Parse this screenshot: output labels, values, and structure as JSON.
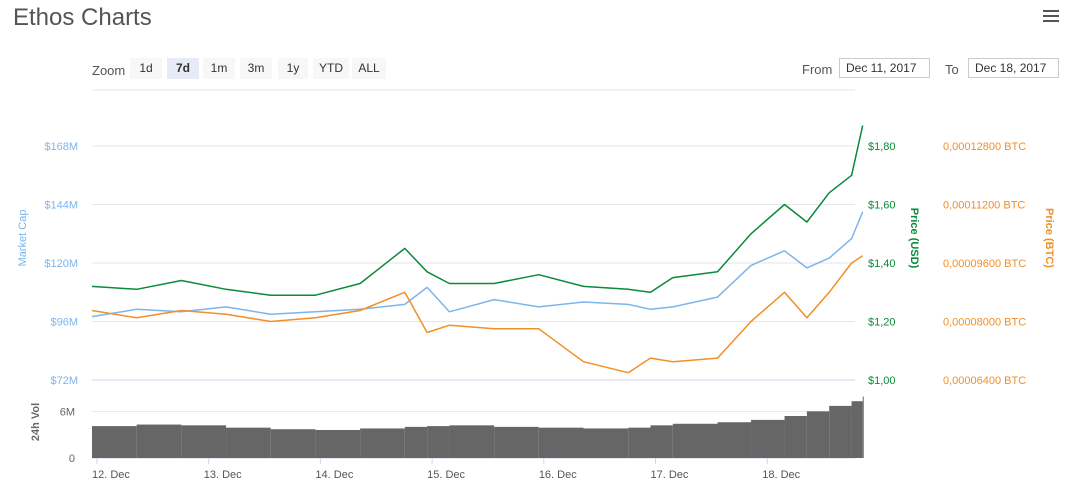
{
  "title": "Ethos Charts",
  "menu_icon": "hamburger-menu-icon",
  "zoom": {
    "label": "Zoom",
    "buttons": [
      "1d",
      "7d",
      "1m",
      "3m",
      "1y",
      "YTD",
      "ALL"
    ],
    "active": "7d"
  },
  "range": {
    "from_label": "From",
    "from_value": "Dec 11, 2017",
    "to_label": "To",
    "to_value": "Dec 18, 2017"
  },
  "colors": {
    "market_cap": "#7cb5ec",
    "price_usd": "#0a8a3a",
    "price_btc": "#f28f25",
    "volume": "#666666",
    "grid": "#e6e6e6"
  },
  "chart_data": {
    "type": "line",
    "x_axis": {
      "tick_labels": [
        "12. Dec",
        "13. Dec",
        "14. Dec",
        "15. Dec",
        "16. Dec",
        "17. Dec",
        "18. Dec"
      ]
    },
    "y_axes": {
      "market_cap": {
        "title": "Market Cap",
        "ticks": [
          "$72M",
          "$96M",
          "$120M",
          "$144M",
          "$168M"
        ],
        "tick_values": [
          72,
          96,
          120,
          144,
          168
        ],
        "unit": "M USD"
      },
      "price_usd": {
        "title": "Price (USD)",
        "ticks": [
          "$1,00",
          "$1,20",
          "$1,40",
          "$1,60",
          "$1,80"
        ],
        "tick_values": [
          1.0,
          1.2,
          1.4,
          1.6,
          1.8
        ]
      },
      "price_btc": {
        "title": "Price (BTC)",
        "ticks": [
          "0,00006400 BTC",
          "0,00008000 BTC",
          "0,00009600 BTC",
          "0,00011200 BTC",
          "0,00012800 BTC"
        ],
        "tick_values": [
          6.4e-05,
          8e-05,
          9.6e-05,
          0.000112,
          0.000128
        ]
      },
      "volume": {
        "title": "24h Vol",
        "ticks": [
          "0",
          "6M"
        ],
        "tick_values": [
          0,
          6
        ]
      }
    },
    "x_days": [
      0,
      0.4,
      0.8,
      1.2,
      1.6,
      2.0,
      2.4,
      2.8,
      3.0,
      3.2,
      3.6,
      4.0,
      4.4,
      4.8,
      5.0,
      5.2,
      5.6,
      5.9,
      6.2,
      6.4,
      6.6,
      6.8,
      6.9
    ],
    "series": [
      {
        "name": "Market Cap",
        "values": [
          98,
          101,
          100,
          102,
          99,
          100,
          101,
          103,
          110,
          100,
          105,
          102,
          104,
          103,
          101,
          102,
          106,
          119,
          125,
          118,
          122,
          130,
          141
        ]
      },
      {
        "name": "Price (USD)",
        "values": [
          1.32,
          1.31,
          1.34,
          1.31,
          1.29,
          1.29,
          1.33,
          1.45,
          1.37,
          1.33,
          1.33,
          1.36,
          1.32,
          1.31,
          1.3,
          1.35,
          1.37,
          1.5,
          1.6,
          1.54,
          1.64,
          1.7,
          1.87
        ]
      },
      {
        "name": "Price (BTC)",
        "values": [
          8.3e-05,
          8.1e-05,
          8.3e-05,
          8.2e-05,
          8e-05,
          8.1e-05,
          8.3e-05,
          8.8e-05,
          7.7e-05,
          7.9e-05,
          7.8e-05,
          7.8e-05,
          6.9e-05,
          6.6e-05,
          7e-05,
          6.9e-05,
          7e-05,
          8e-05,
          8.8e-05,
          8.1e-05,
          8.8e-05,
          9.6e-05,
          9.8e-05
        ]
      }
    ],
    "volume_values": [
      4.1,
      4.3,
      4.2,
      3.9,
      3.7,
      3.6,
      3.8,
      4.0,
      4.1,
      4.2,
      4.0,
      3.9,
      3.8,
      3.9,
      4.2,
      4.4,
      4.6,
      4.9,
      5.4,
      6.0,
      6.7,
      7.3,
      7.9
    ],
    "grid": true,
    "legend": "none"
  }
}
